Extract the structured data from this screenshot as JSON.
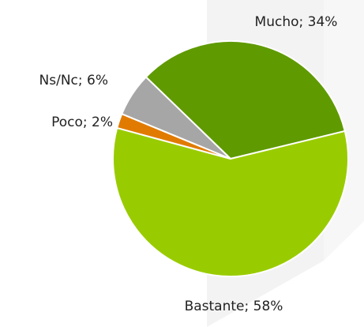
{
  "chart_data": {
    "type": "pie",
    "values": [
      34,
      58,
      2,
      6
    ],
    "value_labels": [
      "Mucho; 34%",
      "Bastante; 58%",
      "Poco; 2%",
      "Ns/Nc; 6%"
    ],
    "colors": [
      "#5f9a00",
      "#99cc00",
      "#e07b00",
      "#a6a6a6"
    ]
  }
}
